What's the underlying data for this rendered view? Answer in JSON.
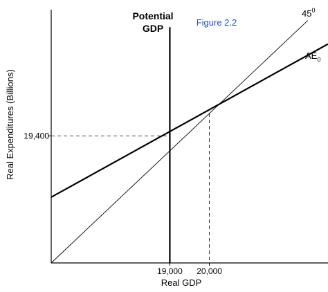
{
  "chart_data": {
    "type": "line",
    "title": "",
    "xlabel": "Real GDP",
    "ylabel": "Real Expenditures (Billions)",
    "xlim": [
      16000,
      23000
    ],
    "ylim": [
      16000,
      23000
    ],
    "grid": false,
    "x_ticks": [
      {
        "value": 19000,
        "label": "19,000"
      },
      {
        "value": 20000,
        "label": "20,000"
      }
    ],
    "y_ticks": [
      {
        "value": 19400,
        "label": "19,400"
      }
    ],
    "series": [
      {
        "id": "line-45",
        "label_base": "45",
        "label_sup": "0",
        "color": "#000000",
        "width": 0.9,
        "x": [
          16000,
          22490
        ],
        "y": [
          16000,
          22490
        ]
      },
      {
        "id": "line-ae0",
        "label_base": "AE",
        "label_sub": "0",
        "color": "#000000",
        "width": 2.2,
        "x": [
          16000,
          23000
        ],
        "y": [
          17760,
          21860
        ]
      }
    ],
    "vertical_lines": [
      {
        "id": "potential-gdp",
        "x": 19000,
        "y_top": 22310,
        "label_lines": [
          "Potential",
          "GDP"
        ],
        "color": "#000000",
        "width": 2.2
      }
    ],
    "dashed_guides": [
      {
        "id": "guide-19400",
        "from": [
          16000,
          19400
        ],
        "to": [
          19000,
          19400
        ]
      },
      {
        "id": "guide-20000",
        "from": [
          20000,
          20000
        ],
        "to": [
          20000,
          16000
        ]
      }
    ],
    "annotations": [
      {
        "id": "figure-label",
        "text": "Figure 2.2",
        "color": "#1f4fbf"
      }
    ]
  }
}
